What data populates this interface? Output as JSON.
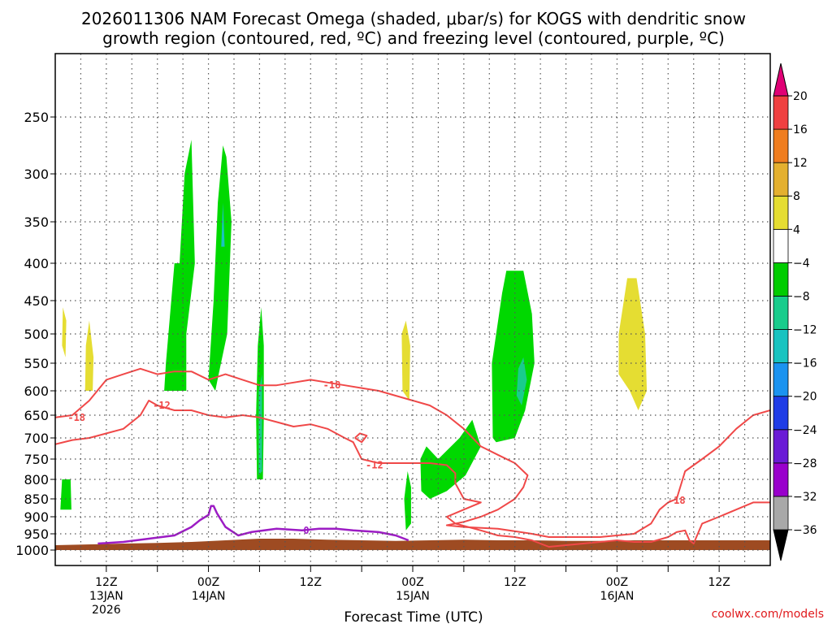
{
  "chart_data": {
    "type": "contour",
    "title_line1": "2026011306 NAM Forecast Omega (shaded, μbar/s) for KOGS with dendritic snow",
    "title_line2": "growth region (contoured, red, ºC) and freezing level (contoured, purple, ºC)",
    "xlabel": "Forecast Time (UTC)",
    "ylabel": "",
    "y_axis": {
      "type": "pressure",
      "units": "mb",
      "range": [
        1000,
        200
      ],
      "ticks": [
        250,
        300,
        350,
        400,
        450,
        500,
        550,
        600,
        650,
        700,
        750,
        800,
        850,
        900,
        950,
        1000
      ]
    },
    "x_axis": {
      "range_hours": [
        0,
        84
      ],
      "ticks": [
        {
          "hour": 6,
          "label": [
            "12Z",
            "13JAN",
            "2026"
          ]
        },
        {
          "hour": 18,
          "label": [
            "00Z",
            "14JAN"
          ]
        },
        {
          "hour": 30,
          "label": [
            "12Z"
          ]
        },
        {
          "hour": 42,
          "label": [
            "00Z",
            "15JAN"
          ]
        },
        {
          "hour": 54,
          "label": [
            "12Z"
          ]
        },
        {
          "hour": 66,
          "label": [
            "00Z",
            "16JAN"
          ]
        },
        {
          "hour": 78,
          "label": [
            "12Z"
          ]
        }
      ]
    },
    "colorbar": {
      "levels": [
        -36,
        -32,
        -28,
        -24,
        -20,
        -16,
        -12,
        -8,
        -4,
        4,
        8,
        12,
        16,
        20
      ],
      "labels": [
        "20",
        "16",
        "12",
        "8",
        "4",
        "−4",
        "−8",
        "−12",
        "−16",
        "−20",
        "−24",
        "−28",
        "−32",
        "−36"
      ],
      "colors": [
        "#000000",
        "#a8a8a8",
        "#9900cc",
        "#6a1bd6",
        "#1f3ce6",
        "#1b93f0",
        "#19c3c0",
        "#19cc8c",
        "#00cc00",
        "#ffffff",
        "#e5dd32",
        "#e4b02f",
        "#ef7d1f",
        "#f04040",
        "#e00075"
      ]
    },
    "omega_regions": [
      {
        "name": "green-column-1",
        "value": -6,
        "color": "#00d800",
        "points": [
          [
            12.8,
            600
          ],
          [
            13.0,
            550
          ],
          [
            14.0,
            400
          ],
          [
            14.6,
            400
          ],
          [
            15.2,
            300
          ],
          [
            16.0,
            270
          ],
          [
            16.4,
            400
          ],
          [
            15.4,
            500
          ],
          [
            15.4,
            600
          ]
        ]
      },
      {
        "name": "green-column-2",
        "value": -6,
        "color": "#00d800",
        "points": [
          [
            18.0,
            580
          ],
          [
            18.6,
            450
          ],
          [
            19.1,
            330
          ],
          [
            19.7,
            275
          ],
          [
            20.1,
            285
          ],
          [
            20.7,
            350
          ],
          [
            20.2,
            500
          ],
          [
            19.2,
            570
          ],
          [
            18.8,
            600
          ]
        ]
      },
      {
        "name": "green-column-3",
        "value": -6,
        "color": "#00d800",
        "points": [
          [
            23.7,
            800
          ],
          [
            23.6,
            650
          ],
          [
            23.8,
            520
          ],
          [
            24.2,
            460
          ],
          [
            24.5,
            520
          ],
          [
            24.5,
            650
          ],
          [
            24.4,
            800
          ]
        ]
      },
      {
        "name": "green-column-4",
        "value": -6,
        "color": "#00d800",
        "points": [
          [
            41.2,
            940
          ],
          [
            41.0,
            850
          ],
          [
            41.4,
            780
          ],
          [
            41.8,
            820
          ],
          [
            41.8,
            920
          ]
        ]
      },
      {
        "name": "green-region-5",
        "value": -6,
        "color": "#00d800",
        "points": [
          [
            43.0,
            830
          ],
          [
            42.9,
            750
          ],
          [
            43.6,
            720
          ],
          [
            45.0,
            750
          ],
          [
            47.5,
            700
          ],
          [
            49.0,
            660
          ],
          [
            50.0,
            720
          ],
          [
            48.2,
            790
          ],
          [
            46.0,
            830
          ],
          [
            44.0,
            850
          ]
        ]
      },
      {
        "name": "green-region-6",
        "value": -7,
        "color": "#00d800",
        "points": [
          [
            51.4,
            700
          ],
          [
            51.3,
            550
          ],
          [
            52.5,
            440
          ],
          [
            53.0,
            410
          ],
          [
            55.0,
            410
          ],
          [
            56.0,
            470
          ],
          [
            56.3,
            550
          ],
          [
            55.2,
            640
          ],
          [
            54.0,
            700
          ],
          [
            51.8,
            710
          ]
        ]
      },
      {
        "name": "teal-core-1",
        "value": -10,
        "color": "#19cc8c",
        "points": [
          [
            54.2,
            610
          ],
          [
            54.4,
            560
          ],
          [
            55.0,
            540
          ],
          [
            55.4,
            580
          ],
          [
            54.8,
            630
          ]
        ]
      },
      {
        "name": "teal-core-2",
        "value": -10,
        "color": "#19cc8c",
        "points": [
          [
            23.9,
            790
          ],
          [
            23.9,
            600
          ],
          [
            24.3,
            570
          ],
          [
            24.3,
            780
          ]
        ]
      },
      {
        "name": "blue-core-1",
        "value": -14,
        "color": "#19c3c0",
        "points": [
          [
            19.5,
            380
          ],
          [
            19.7,
            330
          ],
          [
            19.9,
            380
          ]
        ]
      },
      {
        "name": "yellow-blob-1",
        "value": 6,
        "color": "#e5dd32",
        "points": [
          [
            0.8,
            520
          ],
          [
            0.9,
            460
          ],
          [
            1.3,
            480
          ],
          [
            1.2,
            540
          ]
        ]
      },
      {
        "name": "yellow-blob-2",
        "value": 6,
        "color": "#e5dd32",
        "points": [
          [
            3.5,
            600
          ],
          [
            3.6,
            520
          ],
          [
            4.0,
            480
          ],
          [
            4.5,
            540
          ],
          [
            4.4,
            600
          ]
        ]
      },
      {
        "name": "yellow-blob-3",
        "value": 6,
        "color": "#e5dd32",
        "points": [
          [
            40.8,
            600
          ],
          [
            40.7,
            500
          ],
          [
            41.2,
            480
          ],
          [
            41.7,
            520
          ],
          [
            41.6,
            620
          ]
        ]
      },
      {
        "name": "yellow-blob-4",
        "value": 6,
        "color": "#e5dd32",
        "points": [
          [
            66.2,
            570
          ],
          [
            66.2,
            500
          ],
          [
            67.2,
            420
          ],
          [
            68.3,
            420
          ],
          [
            69.3,
            500
          ],
          [
            69.5,
            600
          ],
          [
            68.5,
            640
          ],
          [
            67.5,
            600
          ]
        ]
      },
      {
        "name": "green-small-1",
        "value": -6,
        "color": "#00d800",
        "points": [
          [
            0.6,
            880
          ],
          [
            0.8,
            800
          ],
          [
            1.8,
            800
          ],
          [
            1.9,
            880
          ]
        ]
      }
    ],
    "dgz_contours": [
      {
        "name": "minus18-contour",
        "level": -18,
        "color": "#f04848",
        "labels": [
          "-18",
          "-18",
          "-18"
        ],
        "label_points": [
          [
            2.5,
            655
          ],
          [
            32.5,
            590
          ],
          [
            73.0,
            855
          ]
        ],
        "points": [
          [
            0,
            655
          ],
          [
            2,
            650
          ],
          [
            4,
            620
          ],
          [
            6,
            580
          ],
          [
            8,
            570
          ],
          [
            10,
            560
          ],
          [
            12,
            570
          ],
          [
            14,
            565
          ],
          [
            16,
            565
          ],
          [
            18,
            580
          ],
          [
            20,
            570
          ],
          [
            22,
            580
          ],
          [
            24,
            590
          ],
          [
            26,
            590
          ],
          [
            28,
            585
          ],
          [
            30,
            580
          ],
          [
            32,
            585
          ],
          [
            34,
            590
          ],
          [
            36,
            595
          ],
          [
            38,
            600
          ],
          [
            40,
            610
          ],
          [
            42,
            620
          ],
          [
            44,
            630
          ],
          [
            46,
            650
          ],
          [
            48,
            680
          ],
          [
            50,
            720
          ],
          [
            52,
            740
          ],
          [
            54,
            760
          ],
          [
            55.5,
            790
          ],
          [
            55,
            820
          ],
          [
            54,
            850
          ],
          [
            52,
            880
          ],
          [
            50,
            900
          ],
          [
            48,
            915
          ],
          [
            46,
            925
          ],
          [
            48,
            930
          ],
          [
            52,
            935
          ],
          [
            56,
            950
          ],
          [
            58,
            960
          ],
          [
            60,
            960
          ],
          [
            62,
            960
          ],
          [
            64,
            960
          ],
          [
            66,
            955
          ],
          [
            68,
            950
          ],
          [
            70,
            920
          ],
          [
            71,
            880
          ],
          [
            72,
            860
          ],
          [
            73,
            850
          ],
          [
            74,
            780
          ],
          [
            76,
            750
          ],
          [
            78,
            720
          ],
          [
            80,
            680
          ],
          [
            82,
            650
          ],
          [
            84,
            640
          ]
        ]
      },
      {
        "name": "minus12-contour",
        "level": -12,
        "color": "#f04848",
        "labels": [
          "-12",
          "-12"
        ],
        "label_points": [
          [
            12.5,
            630
          ],
          [
            37.5,
            765
          ]
        ],
        "points": [
          [
            0,
            715
          ],
          [
            2,
            705
          ],
          [
            4,
            700
          ],
          [
            6,
            690
          ],
          [
            8,
            680
          ],
          [
            10,
            650
          ],
          [
            11,
            620
          ],
          [
            12,
            630
          ],
          [
            14,
            640
          ],
          [
            16,
            640
          ],
          [
            18,
            650
          ],
          [
            20,
            655
          ],
          [
            22,
            650
          ],
          [
            24,
            655
          ],
          [
            26,
            665
          ],
          [
            28,
            675
          ],
          [
            30,
            670
          ],
          [
            32,
            680
          ],
          [
            34,
            700
          ],
          [
            35,
            710
          ],
          [
            35.5,
            730
          ],
          [
            36,
            750
          ],
          [
            38,
            760
          ],
          [
            40,
            760
          ],
          [
            42,
            760
          ],
          [
            44,
            760
          ],
          [
            46,
            765
          ],
          [
            47,
            785
          ],
          [
            47,
            810
          ],
          [
            48,
            850
          ],
          [
            50,
            860
          ],
          [
            48,
            880
          ],
          [
            46,
            900
          ],
          [
            47,
            920
          ],
          [
            50,
            940
          ],
          [
            52,
            955
          ],
          [
            54,
            960
          ],
          [
            56,
            970
          ],
          [
            58,
            990
          ],
          [
            60,
            985
          ],
          [
            64,
            975
          ],
          [
            66,
            970
          ],
          [
            68,
            975
          ],
          [
            70,
            975
          ],
          [
            72,
            960
          ],
          [
            73,
            945
          ],
          [
            74,
            940
          ],
          [
            74.5,
            970
          ],
          [
            75,
            980
          ],
          [
            76,
            920
          ],
          [
            78,
            900
          ],
          [
            80,
            880
          ],
          [
            82,
            860
          ],
          [
            84,
            860
          ]
        ]
      },
      {
        "name": "minus12-small-loop",
        "level": -12,
        "color": "#f04848",
        "labels": [],
        "label_points": [],
        "points": [
          [
            35.2,
            700
          ],
          [
            35.8,
            690
          ],
          [
            36.6,
            695
          ],
          [
            36.0,
            710
          ],
          [
            35.2,
            700
          ]
        ]
      }
    ],
    "freezing_contours": [
      {
        "name": "zero-contour",
        "level": 0,
        "color": "#9c1cc4",
        "labels": [
          "0"
        ],
        "label_points": [
          [
            29.5,
            940
          ]
        ],
        "points": [
          [
            5,
            980
          ],
          [
            8,
            975
          ],
          [
            11,
            965
          ],
          [
            14,
            955
          ],
          [
            16,
            930
          ],
          [
            17,
            910
          ],
          [
            18,
            895
          ],
          [
            18.3,
            870
          ],
          [
            18.6,
            870
          ],
          [
            19,
            890
          ],
          [
            20,
            930
          ],
          [
            21.5,
            955
          ],
          [
            23,
            945
          ],
          [
            26,
            935
          ],
          [
            29,
            940
          ],
          [
            31,
            935
          ],
          [
            33,
            935
          ],
          [
            35,
            940
          ],
          [
            38,
            945
          ],
          [
            40,
            955
          ],
          [
            41.5,
            970
          ]
        ]
      }
    ],
    "terrain": {
      "name": "surface-fill",
      "color": "#9e4b22",
      "points": [
        [
          0,
          1000
        ],
        [
          0,
          985
        ],
        [
          8,
          980
        ],
        [
          12,
          978
        ],
        [
          16,
          975
        ],
        [
          20,
          970
        ],
        [
          24,
          965
        ],
        [
          28,
          965
        ],
        [
          32,
          968
        ],
        [
          36,
          970
        ],
        [
          40,
          972
        ],
        [
          44,
          970
        ],
        [
          48,
          968
        ],
        [
          52,
          970
        ],
        [
          56,
          970
        ],
        [
          60,
          972
        ],
        [
          64,
          972
        ],
        [
          68,
          970
        ],
        [
          72,
          970
        ],
        [
          76,
          970
        ],
        [
          80,
          970
        ],
        [
          84,
          970
        ],
        [
          84,
          1000
        ]
      ]
    }
  },
  "credit": "coolwx.com/models"
}
